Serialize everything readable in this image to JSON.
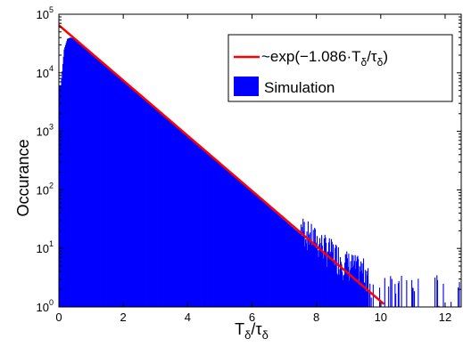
{
  "chart_data": {
    "type": "bar",
    "xlabel": {
      "base": "T",
      "sub": "δ",
      "slash": "/",
      "base2": "τ",
      "sub2": "δ"
    },
    "ylabel": "Occurance",
    "xlim": [
      0,
      12.5
    ],
    "ylim_log10": [
      0,
      5
    ],
    "yscale": "log",
    "x_ticks": [
      "0",
      "2",
      "4",
      "6",
      "8",
      "10",
      "12"
    ],
    "x_tick_values": [
      0,
      2,
      4,
      6,
      8,
      10,
      12
    ],
    "y_ticks": [
      {
        "base": "10",
        "exp": "0"
      },
      {
        "base": "10",
        "exp": "1"
      },
      {
        "base": "10",
        "exp": "2"
      },
      {
        "base": "10",
        "exp": "3"
      },
      {
        "base": "10",
        "exp": "4"
      },
      {
        "base": "10",
        "exp": "5"
      }
    ],
    "y_tick_values": [
      1,
      10,
      100,
      1000,
      10000,
      100000
    ],
    "legend_placement": "top-right",
    "series": [
      {
        "name": "~exp(−1.086·Tδ/τδ)",
        "label_parts": {
          "prefix": "~exp(−1.086·T",
          "sub1": "δ",
          "mid": "/τ",
          "sub2": "δ",
          "suffix": ")"
        },
        "kind": "line",
        "color": "#ff0000",
        "amplitude": 65000,
        "rate": 1.086,
        "x_range": [
          0,
          10.1
        ]
      },
      {
        "name": "Simulation",
        "kind": "histogram",
        "color": "#0000ff",
        "x": [
          0.05,
          0.15,
          0.25,
          0.35,
          0.5,
          1,
          2,
          3,
          4,
          5,
          6,
          7,
          8,
          9,
          9.5,
          10,
          10.5,
          11,
          11.5,
          12,
          12.4
        ],
        "values": [
          6000,
          25000,
          38000,
          40000,
          37000,
          21000,
          7100,
          2400,
          800,
          270,
          90,
          30,
          10,
          4,
          3,
          2,
          2,
          2,
          2,
          2,
          2
        ]
      }
    ]
  }
}
